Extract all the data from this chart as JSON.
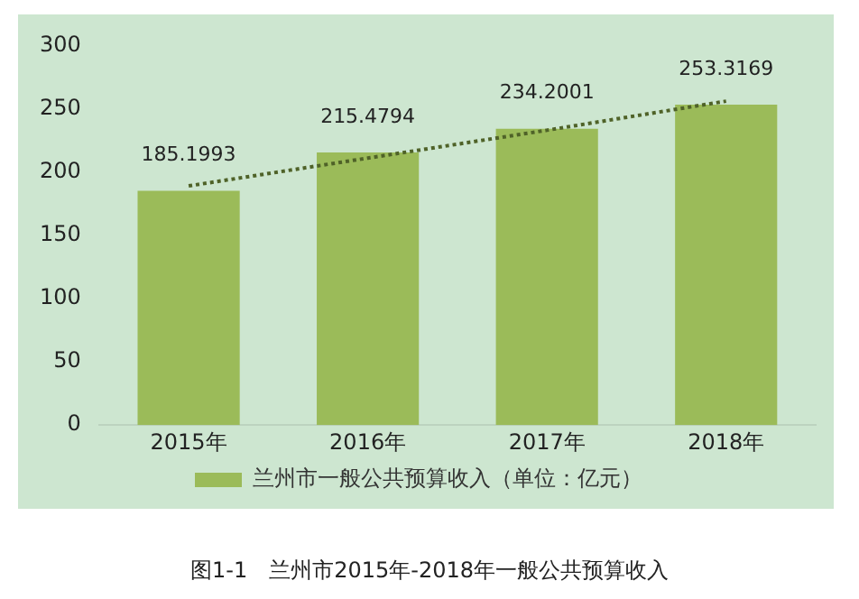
{
  "chart_data": {
    "type": "bar",
    "categories": [
      "2015年",
      "2016年",
      "2017年",
      "2018年"
    ],
    "series": [
      {
        "name": "兰州市一般公共预算收入（单位：亿元）",
        "color": "#9bbb59",
        "values": [
          185.1993,
          215.4794,
          234.2001,
          253.3169
        ],
        "value_labels": [
          "185.1993",
          "215.4794",
          "234.2001",
          "253.3169"
        ]
      },
      {
        "type": "line",
        "color": "#4f6228",
        "values": [
          189,
          211,
          233,
          256
        ],
        "line_style": "dotted",
        "marker": "none"
      }
    ],
    "ylim": [
      0,
      300
    ],
    "yticks": [
      0,
      50,
      100,
      150,
      200,
      250,
      300
    ],
    "grid": false,
    "legend": "bottom",
    "annotations": [
      "图1-1　兰州市2015年-2018年一般公共预算收入"
    ]
  }
}
